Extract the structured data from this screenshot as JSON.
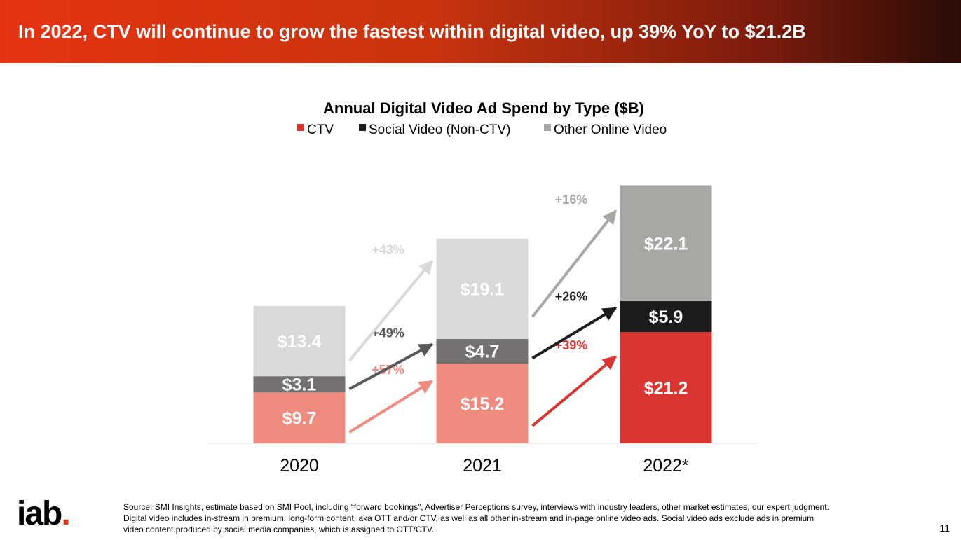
{
  "header": {
    "title": "In 2022, CTV will continue to grow the fastest within digital video, up 39% YoY to $21.2B"
  },
  "chart_data": {
    "type": "bar",
    "stacked": true,
    "title": "Annual Digital Video Ad Spend by Type ($B)",
    "categories": [
      "2020",
      "2021",
      "2022*"
    ],
    "series": [
      {
        "name": "CTV",
        "values": [
          9.7,
          15.2,
          21.2
        ],
        "labels": [
          "$9.7",
          "$15.2",
          "$21.2"
        ],
        "colors": [
          "#f08b80",
          "#f08b80",
          "#da3631"
        ],
        "legend_color": "#da3631"
      },
      {
        "name": "Social Video (Non-CTV)",
        "values": [
          3.1,
          4.7,
          5.9
        ],
        "labels": [
          "$3.1",
          "$4.7",
          "$5.9"
        ],
        "colors": [
          "#767171",
          "#767171",
          "#1c1c1c"
        ],
        "legend_color": "#1c1c1c"
      },
      {
        "name": "Other Online Video",
        "values": [
          13.4,
          19.1,
          22.1
        ],
        "labels": [
          "$13.4",
          "$19.1",
          "$22.1"
        ],
        "colors": [
          "#d9d9d9",
          "#d9d9d9",
          "#a8a7a3"
        ],
        "legend_color": "#a8a7a3"
      }
    ],
    "growth": [
      {
        "series": "CTV",
        "from": "2020",
        "to": "2021",
        "label": "+57%",
        "color": "#f08b80"
      },
      {
        "series": "Social Video (Non-CTV)",
        "from": "2020",
        "to": "2021",
        "label": "+49%",
        "color": "#595959"
      },
      {
        "series": "Other Online Video",
        "from": "2020",
        "to": "2021",
        "label": "+43%",
        "color": "#d9d9d9"
      },
      {
        "series": "CTV",
        "from": "2021",
        "to": "2022*",
        "label": "+39%",
        "color": "#da3631"
      },
      {
        "series": "Social Video (Non-CTV)",
        "from": "2021",
        "to": "2022*",
        "label": "+26%",
        "color": "#1c1c1c"
      },
      {
        "series": "Other Online Video",
        "from": "2021",
        "to": "2022*",
        "label": "+16%",
        "color": "#a8a7a3"
      }
    ],
    "legend_position": "top",
    "grid": false
  },
  "footer": {
    "source_lines": [
      "Source: SMI Insights, estimate based on SMI Pool, including “forward bookings”, Advertiser Perceptions survey, interviews with industry leaders, other market estimates, our expert judgment.",
      "Digital video includes in-stream in premium, long-form content, aka OTT and/or CTV, as well as all other in-stream and in-page online video ads. Social video ads exclude ads in premium",
      "video content produced by social media companies, which is assigned to OTT/CTV."
    ],
    "logo_text": "iab",
    "logo_dot": ".",
    "page_number": "11"
  }
}
